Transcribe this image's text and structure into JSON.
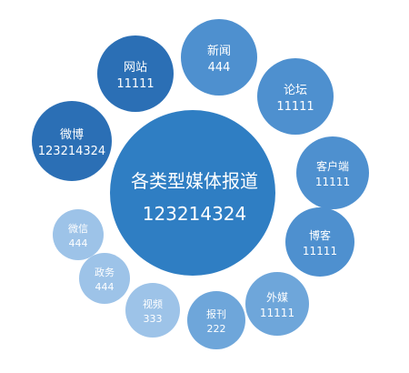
{
  "chart_data": {
    "type": "bubble",
    "title": "",
    "center": {
      "label": "各类型媒体报道",
      "value": 123214324
    },
    "categories": [
      "微博",
      "网站",
      "新闻",
      "论坛",
      "客户端",
      "博客",
      "外媒",
      "报刊",
      "视频",
      "政务",
      "微信"
    ],
    "values": [
      123214324,
      11111,
      444,
      11111,
      11111,
      11111,
      11111,
      222,
      333,
      444,
      444
    ],
    "colors": {
      "center": "#2f7ec3",
      "large": "#2b6fb5",
      "medium": "#4e90cf",
      "small": "#6ea6da",
      "light": "#9dc3e8"
    }
  }
}
